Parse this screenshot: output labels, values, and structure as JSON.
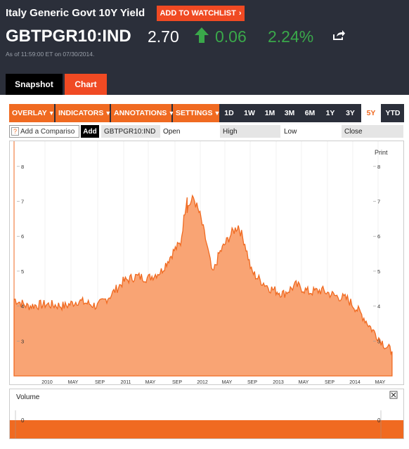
{
  "header": {
    "security_name": "Italy Generic Govt 10Y Yield",
    "watchlist_label": "ADD TO WATCHLIST",
    "ticker": "GBTPGR10:IND",
    "price": "2.70",
    "change": "0.06",
    "percent_change": "2.24%",
    "as_of": "As of 11:59:00 ET on 07/30/2014."
  },
  "tabs": [
    {
      "label": "Snapshot",
      "active": false
    },
    {
      "label": "Chart",
      "active": true
    }
  ],
  "toolbar": {
    "menus": [
      "OVERLAY",
      "INDICATORS",
      "ANNOTATIONS",
      "SETTINGS"
    ],
    "ranges": [
      "1D",
      "1W",
      "1M",
      "3M",
      "6M",
      "1Y",
      "3Y",
      "5Y",
      "YTD"
    ],
    "active_range": "5Y"
  },
  "compare": {
    "placeholder": "Add a Compariso",
    "add_label": "Add",
    "symbol": "GBTPGR10:IND",
    "open_label": "Open",
    "high_label": "High",
    "low_label": "Low",
    "close_label": "Close"
  },
  "colors": {
    "accent": "#f04a23",
    "area_fill": "#f9a474",
    "area_line": "#f06a21",
    "positive": "#3aa84a",
    "header_bg": "#2b2f3a"
  },
  "chart_data": {
    "type": "area",
    "print_label": "Print",
    "x_tick_labels": [
      "2010",
      "MAY",
      "SEP",
      "2011",
      "MAY",
      "SEP",
      "2012",
      "MAY",
      "SEP",
      "2013",
      "MAY",
      "SEP",
      "2014",
      "MAY"
    ],
    "y_tick_labels": [
      "3",
      "4",
      "5",
      "6",
      "7",
      "8"
    ],
    "ylim": [
      2.0,
      8.6
    ],
    "x": [
      "2009-08",
      "2009-10",
      "2010-01",
      "2010-04",
      "2010-06",
      "2010-09",
      "2010-11",
      "2011-01",
      "2011-03",
      "2011-05",
      "2011-07",
      "2011-08",
      "2011-09",
      "2011-10",
      "2011-11",
      "2011-11",
      "2011-12",
      "2012-01",
      "2012-02",
      "2012-03",
      "2012-04",
      "2012-05",
      "2012-06",
      "2012-07",
      "2012-08",
      "2012-09",
      "2012-10",
      "2012-12",
      "2013-02",
      "2013-04",
      "2013-06",
      "2013-08",
      "2013-10",
      "2013-12",
      "2014-02",
      "2014-04",
      "2014-06",
      "2014-07"
    ],
    "values": [
      4.2,
      4.0,
      4.05,
      4.0,
      4.15,
      4.0,
      4.3,
      4.7,
      4.85,
      4.8,
      5.0,
      5.3,
      5.6,
      5.8,
      7.2,
      6.8,
      7.1,
      6.6,
      5.8,
      4.9,
      5.5,
      5.8,
      6.1,
      6.3,
      5.8,
      5.0,
      4.8,
      4.5,
      4.35,
      4.6,
      4.4,
      4.45,
      4.3,
      4.2,
      3.8,
      3.3,
      2.85,
      2.7
    ],
    "volume": {
      "label": "Volume",
      "y_tick_labels": [
        "0"
      ]
    }
  }
}
